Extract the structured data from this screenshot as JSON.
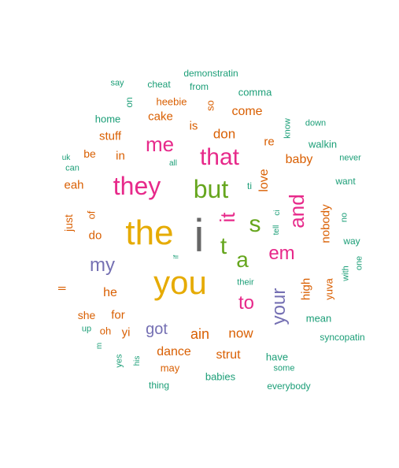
{
  "palette": {
    "teal": "#1b9e77",
    "orange": "#d95f02",
    "purple": "#7570b3",
    "pink": "#e7298a",
    "green": "#66a61e",
    "gold": "#e6ab02",
    "gray": "#666666"
  },
  "words": [
    {
      "text": "i",
      "color": "gray",
      "vertical": false
    },
    {
      "text": "the",
      "color": "gold",
      "vertical": false
    },
    {
      "text": "you",
      "color": "gold",
      "vertical": false
    },
    {
      "text": "they",
      "color": "pink",
      "vertical": false
    },
    {
      "text": "but",
      "color": "green",
      "vertical": false
    },
    {
      "text": "that",
      "color": "pink",
      "vertical": false
    },
    {
      "text": "me",
      "color": "pink",
      "vertical": false
    },
    {
      "text": "it",
      "color": "pink",
      "vertical": true
    },
    {
      "text": "s",
      "color": "green",
      "vertical": false
    },
    {
      "text": "t",
      "color": "green",
      "vertical": false
    },
    {
      "text": "a",
      "color": "green",
      "vertical": false
    },
    {
      "text": "and",
      "color": "pink",
      "vertical": true
    },
    {
      "text": "em",
      "color": "pink",
      "vertical": false
    },
    {
      "text": "my",
      "color": "purple",
      "vertical": false
    },
    {
      "text": "to",
      "color": "pink",
      "vertical": false
    },
    {
      "text": "your",
      "color": "purple",
      "vertical": true
    },
    {
      "text": "got",
      "color": "purple",
      "vertical": false
    },
    {
      "text": "love",
      "color": "orange",
      "vertical": true
    },
    {
      "text": "don",
      "color": "orange",
      "vertical": false
    },
    {
      "text": "baby",
      "color": "orange",
      "vertical": false
    },
    {
      "text": "come",
      "color": "orange",
      "vertical": false
    },
    {
      "text": "cake",
      "color": "orange",
      "vertical": false
    },
    {
      "text": "stuff",
      "color": "orange",
      "vertical": false
    },
    {
      "text": "eah",
      "color": "orange",
      "vertical": false
    },
    {
      "text": "ain",
      "color": "orange",
      "vertical": false
    },
    {
      "text": "now",
      "color": "orange",
      "vertical": false
    },
    {
      "text": "dance",
      "color": "orange",
      "vertical": false
    },
    {
      "text": "strut",
      "color": "orange",
      "vertical": false
    },
    {
      "text": "nobody",
      "color": "orange",
      "vertical": true
    },
    {
      "text": "high",
      "color": "orange",
      "vertical": true
    },
    {
      "text": "yuva",
      "color": "orange",
      "vertical": true
    },
    {
      "text": "is",
      "color": "orange",
      "vertical": false
    },
    {
      "text": "re",
      "color": "orange",
      "vertical": false
    },
    {
      "text": "in",
      "color": "orange",
      "vertical": false
    },
    {
      "text": "be",
      "color": "orange",
      "vertical": false
    },
    {
      "text": "do",
      "color": "orange",
      "vertical": false
    },
    {
      "text": "he",
      "color": "orange",
      "vertical": false
    },
    {
      "text": "she",
      "color": "orange",
      "vertical": false
    },
    {
      "text": "for",
      "color": "orange",
      "vertical": false
    },
    {
      "text": "yi",
      "color": "orange",
      "vertical": false
    },
    {
      "text": "oh",
      "color": "orange",
      "vertical": false
    },
    {
      "text": "heebie",
      "color": "orange",
      "vertical": false
    },
    {
      "text": "so",
      "color": "orange",
      "vertical": true
    },
    {
      "text": "just",
      "color": "orange",
      "vertical": true
    },
    {
      "text": "of",
      "color": "orange",
      "vertical": true
    },
    {
      "text": "may",
      "color": "orange",
      "vertical": false
    },
    {
      "text": "ll",
      "color": "orange",
      "vertical": true
    },
    {
      "text": "babies",
      "color": "teal",
      "vertical": false
    },
    {
      "text": "have",
      "color": "teal",
      "vertical": false
    },
    {
      "text": "mean",
      "color": "teal",
      "vertical": false
    },
    {
      "text": "home",
      "color": "teal",
      "vertical": false
    },
    {
      "text": "comma",
      "color": "teal",
      "vertical": false
    },
    {
      "text": "walkin",
      "color": "teal",
      "vertical": false
    },
    {
      "text": "want",
      "color": "teal",
      "vertical": false
    },
    {
      "text": "way",
      "color": "teal",
      "vertical": false
    },
    {
      "text": "thing",
      "color": "teal",
      "vertical": false
    },
    {
      "text": "everybody",
      "color": "teal",
      "vertical": false
    },
    {
      "text": "some",
      "color": "teal",
      "vertical": false
    },
    {
      "text": "syncopatin",
      "color": "teal",
      "vertical": false
    },
    {
      "text": "demonstratin",
      "color": "teal",
      "vertical": false
    },
    {
      "text": "from",
      "color": "teal",
      "vertical": false
    },
    {
      "text": "say",
      "color": "teal",
      "vertical": false
    },
    {
      "text": "cheat",
      "color": "teal",
      "vertical": false
    },
    {
      "text": "on",
      "color": "teal",
      "vertical": true
    },
    {
      "text": "down",
      "color": "teal",
      "vertical": false
    },
    {
      "text": "never",
      "color": "teal",
      "vertical": false
    },
    {
      "text": "know",
      "color": "teal",
      "vertical": true
    },
    {
      "text": "can",
      "color": "teal",
      "vertical": false
    },
    {
      "text": "uk",
      "color": "teal",
      "vertical": false
    },
    {
      "text": "all",
      "color": "teal",
      "vertical": false
    },
    {
      "text": "ti",
      "color": "teal",
      "vertical": false
    },
    {
      "text": "ci",
      "color": "teal",
      "vertical": true
    },
    {
      "text": "tell",
      "color": "teal",
      "vertical": true
    },
    {
      "text": "no",
      "color": "teal",
      "vertical": true
    },
    {
      "text": "with",
      "color": "teal",
      "vertical": true
    },
    {
      "text": "one",
      "color": "teal",
      "vertical": true
    },
    {
      "text": "their",
      "color": "teal",
      "vertical": false
    },
    {
      "text": "if",
      "color": "teal",
      "vertical": true
    },
    {
      "text": "up",
      "color": "teal",
      "vertical": false
    },
    {
      "text": "m",
      "color": "teal",
      "vertical": true
    },
    {
      "text": "yes",
      "color": "teal",
      "vertical": true
    },
    {
      "text": "his",
      "color": "teal",
      "vertical": true
    }
  ]
}
